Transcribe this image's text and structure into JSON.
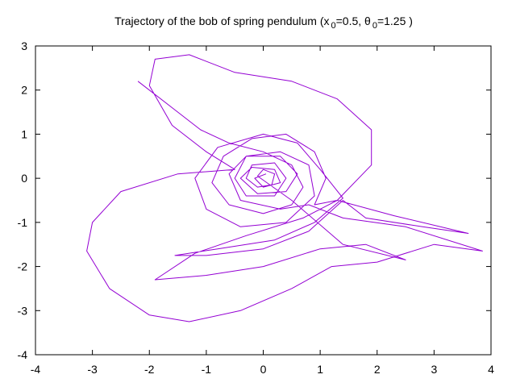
{
  "chart_data": {
    "type": "line",
    "title": [
      "Trajectory of the bob of spring pendulum (x",
      "0",
      "=0.5, θ",
      "0",
      "=1.25 )"
    ],
    "color": "#9400d3",
    "xlim": [
      -4,
      4
    ],
    "xticks": [
      -4,
      -3,
      -2,
      -1,
      0,
      1,
      2,
      3,
      4
    ],
    "ylim": [
      -4,
      3
    ],
    "yticks": [
      -4,
      -3,
      -2,
      -1,
      0,
      1,
      2,
      3
    ],
    "x": [
      -2.2,
      -1.6,
      -1.1,
      -0.6,
      0.0,
      0.5,
      0.7,
      0.5,
      0.0,
      -0.6,
      -0.9,
      -0.7,
      -0.2,
      0.4,
      0.9,
      1.1,
      0.9,
      1.3,
      2.3,
      3.6,
      2.8,
      1.8,
      1.4,
      0.8,
      0.0,
      -1.0,
      -1.55,
      -0.8,
      0.2,
      0.9,
      1.4,
      1.0,
      0.6,
      0.0,
      -0.8,
      -1.2,
      -1.0,
      -0.4,
      0.4,
      0.9,
      0.8,
      0.3,
      -0.3,
      -0.5,
      -0.3,
      0.2,
      0.4,
      0.2,
      -0.2,
      -0.3,
      -0.1,
      0.15,
      0.2,
      0.0,
      -0.1,
      0.5,
      1.4,
      2.5,
      1.8,
      1.0,
      0.0,
      -1.0,
      -1.9,
      -1.2,
      -0.3,
      0.7,
      1.3,
      1.9,
      1.9,
      1.3,
      0.5,
      -0.5,
      -1.3,
      -1.9,
      -2.0,
      -1.6,
      -1.0,
      -0.5,
      -1.5,
      -2.5,
      -3.0,
      -3.1,
      -2.7,
      -2.0,
      -1.3,
      -0.4,
      0.5,
      1.2,
      2.0,
      3.0,
      3.85,
      2.5,
      1.4,
      0.8,
      0.3,
      -0.4,
      -0.6,
      -0.3,
      0.3,
      0.6,
      0.4,
      -0.1,
      -0.4,
      -0.2,
      0.2,
      0.3,
      0.0,
      -0.15,
      0.05
    ],
    "values": [
      2.2,
      1.6,
      1.1,
      0.8,
      0.6,
      0.3,
      -0.2,
      -0.6,
      -0.8,
      -0.6,
      -0.1,
      0.5,
      0.9,
      1.0,
      0.6,
      0.0,
      -0.6,
      -0.5,
      -0.85,
      -1.25,
      -1.1,
      -0.9,
      -0.5,
      -1.2,
      -1.6,
      -1.75,
      -1.75,
      -1.6,
      -1.4,
      -1.0,
      -0.45,
      0.2,
      0.8,
      1.0,
      0.7,
      0.0,
      -0.7,
      -1.1,
      -1.0,
      -0.4,
      0.3,
      0.6,
      0.5,
      0.0,
      -0.4,
      -0.4,
      0.0,
      0.35,
      0.3,
      0.0,
      -0.2,
      -0.15,
      0.1,
      0.2,
      0.05,
      -0.5,
      -1.5,
      -1.85,
      -1.5,
      -1.6,
      -2.0,
      -2.2,
      -2.3,
      -1.7,
      -1.3,
      -0.9,
      -0.5,
      0.3,
      1.1,
      1.8,
      2.2,
      2.4,
      2.8,
      2.7,
      2.1,
      1.2,
      0.6,
      0.2,
      0.1,
      -0.3,
      -1.0,
      -1.65,
      -2.5,
      -3.1,
      -3.25,
      -3.0,
      -2.5,
      -2.0,
      -1.9,
      -1.5,
      -1.65,
      -1.1,
      -0.9,
      -0.6,
      -0.7,
      -0.5,
      0.1,
      0.5,
      0.5,
      0.1,
      -0.3,
      -0.35,
      0.0,
      0.25,
      0.2,
      -0.1,
      -0.2,
      0.0,
      0.1
    ]
  }
}
